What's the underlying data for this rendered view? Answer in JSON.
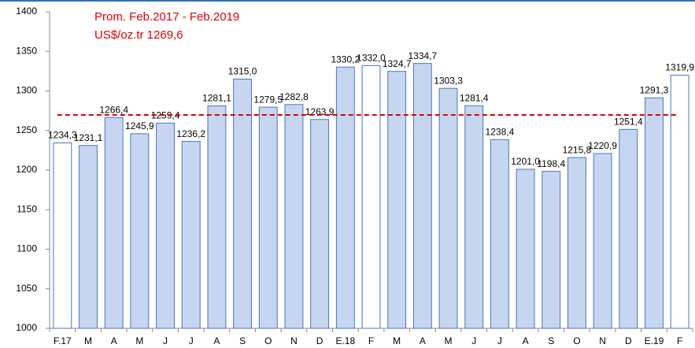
{
  "chart_data": {
    "type": "bar",
    "annotations": [
      "Prom. Feb.2017 - Feb.2019",
      "US$/oz.tr 1269,6"
    ],
    "categories": [
      "F.17",
      "M",
      "A",
      "M",
      "J",
      "J",
      "A",
      "S",
      "O",
      "N",
      "D",
      "E.18",
      "F",
      "M",
      "A",
      "M",
      "J",
      "J",
      "A",
      "S",
      "O",
      "N",
      "D",
      "E.19",
      "F"
    ],
    "values": [
      1234.3,
      1231.1,
      1266.4,
      1245.9,
      1259.4,
      1236.2,
      1281.1,
      1315.0,
      1279.5,
      1282.8,
      1263.9,
      1330.2,
      1332.0,
      1324.7,
      1334.7,
      1303.3,
      1281.4,
      1238.4,
      1201.0,
      1198.4,
      1215.8,
      1220.9,
      1251.4,
      1291.3,
      1319.9
    ],
    "value_labels": [
      "1234,3",
      "1231,1",
      "1266,4",
      "1245,9",
      "1259,4",
      "1236,2",
      "1281,1",
      "1315,0",
      "1279,5",
      "1282,8",
      "1263,9",
      "1330,2",
      "1332,0",
      "1324,7",
      "1334,7",
      "1303,3",
      "1281,4",
      "1238,4",
      "1201,0",
      "1198,4",
      "1215,8",
      "1220,9",
      "1251,4",
      "1291,3",
      "1319,9"
    ],
    "colors": [
      "#ffffff",
      "#c6d6f0",
      "#c6d6f0",
      "#c6d6f0",
      "#c6d6f0",
      "#c6d6f0",
      "#c6d6f0",
      "#c6d6f0",
      "#c6d6f0",
      "#c6d6f0",
      "#c6d6f0",
      "#c6d6f0",
      "#ffffff",
      "#c6d6f0",
      "#c6d6f0",
      "#c6d6f0",
      "#c6d6f0",
      "#c6d6f0",
      "#c6d6f0",
      "#c6d6f0",
      "#c6d6f0",
      "#c6d6f0",
      "#c6d6f0",
      "#c6d6f0",
      "#ffffff"
    ],
    "edge_color": "#4a76b8",
    "reference_line": {
      "value": 1269.6,
      "color": "#e00000"
    },
    "ylim": [
      1000,
      1400
    ],
    "yticks": [
      1000,
      1050,
      1100,
      1150,
      1200,
      1250,
      1300,
      1350,
      1400
    ],
    "grid": false
  }
}
